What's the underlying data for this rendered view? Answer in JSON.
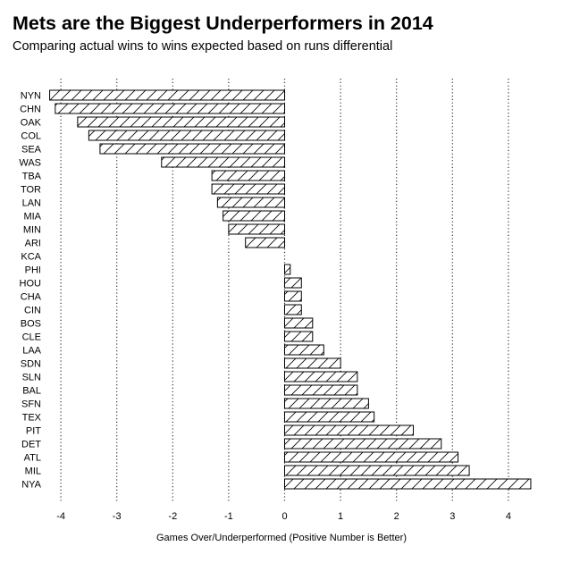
{
  "title": "Mets are the Biggest Underperformers in 2014",
  "subtitle": "Comparing actual wins to wins expected based on runs differential",
  "chart_data": {
    "type": "bar",
    "orientation": "horizontal",
    "title": "Mets are the Biggest Underperformers in 2014",
    "subtitle": "Comparing actual wins to wins expected based on runs differential",
    "xlabel": "Games Over/Underperformed (Positive Number is Better)",
    "ylabel": "",
    "xlim": [
      -4.2,
      4.4
    ],
    "xticks": [
      -4,
      -3,
      -2,
      -1,
      0,
      1,
      2,
      3,
      4
    ],
    "xtick_labels": [
      "-4",
      "-3",
      "-2",
      "-1",
      "0",
      "1",
      "2",
      "3",
      "4"
    ],
    "grid": "vertical dotted lines at integer ticks",
    "bar_fill": "hatched",
    "categories": [
      "NYN",
      "CHN",
      "OAK",
      "COL",
      "SEA",
      "WAS",
      "TBA",
      "TOR",
      "LAN",
      "MIA",
      "MIN",
      "ARI",
      "KCA",
      "PHI",
      "HOU",
      "CHA",
      "CIN",
      "BOS",
      "CLE",
      "LAA",
      "SDN",
      "SLN",
      "BAL",
      "SFN",
      "TEX",
      "PIT",
      "DET",
      "ATL",
      "MIL",
      "NYA"
    ],
    "values": [
      -4.2,
      -4.1,
      -3.7,
      -3.5,
      -3.3,
      -2.2,
      -1.3,
      -1.3,
      -1.2,
      -1.1,
      -1.0,
      -0.7,
      0.0,
      0.1,
      0.3,
      0.3,
      0.3,
      0.5,
      0.5,
      0.7,
      1.0,
      1.3,
      1.3,
      1.5,
      1.6,
      2.3,
      2.8,
      3.1,
      3.3,
      4.4
    ]
  }
}
